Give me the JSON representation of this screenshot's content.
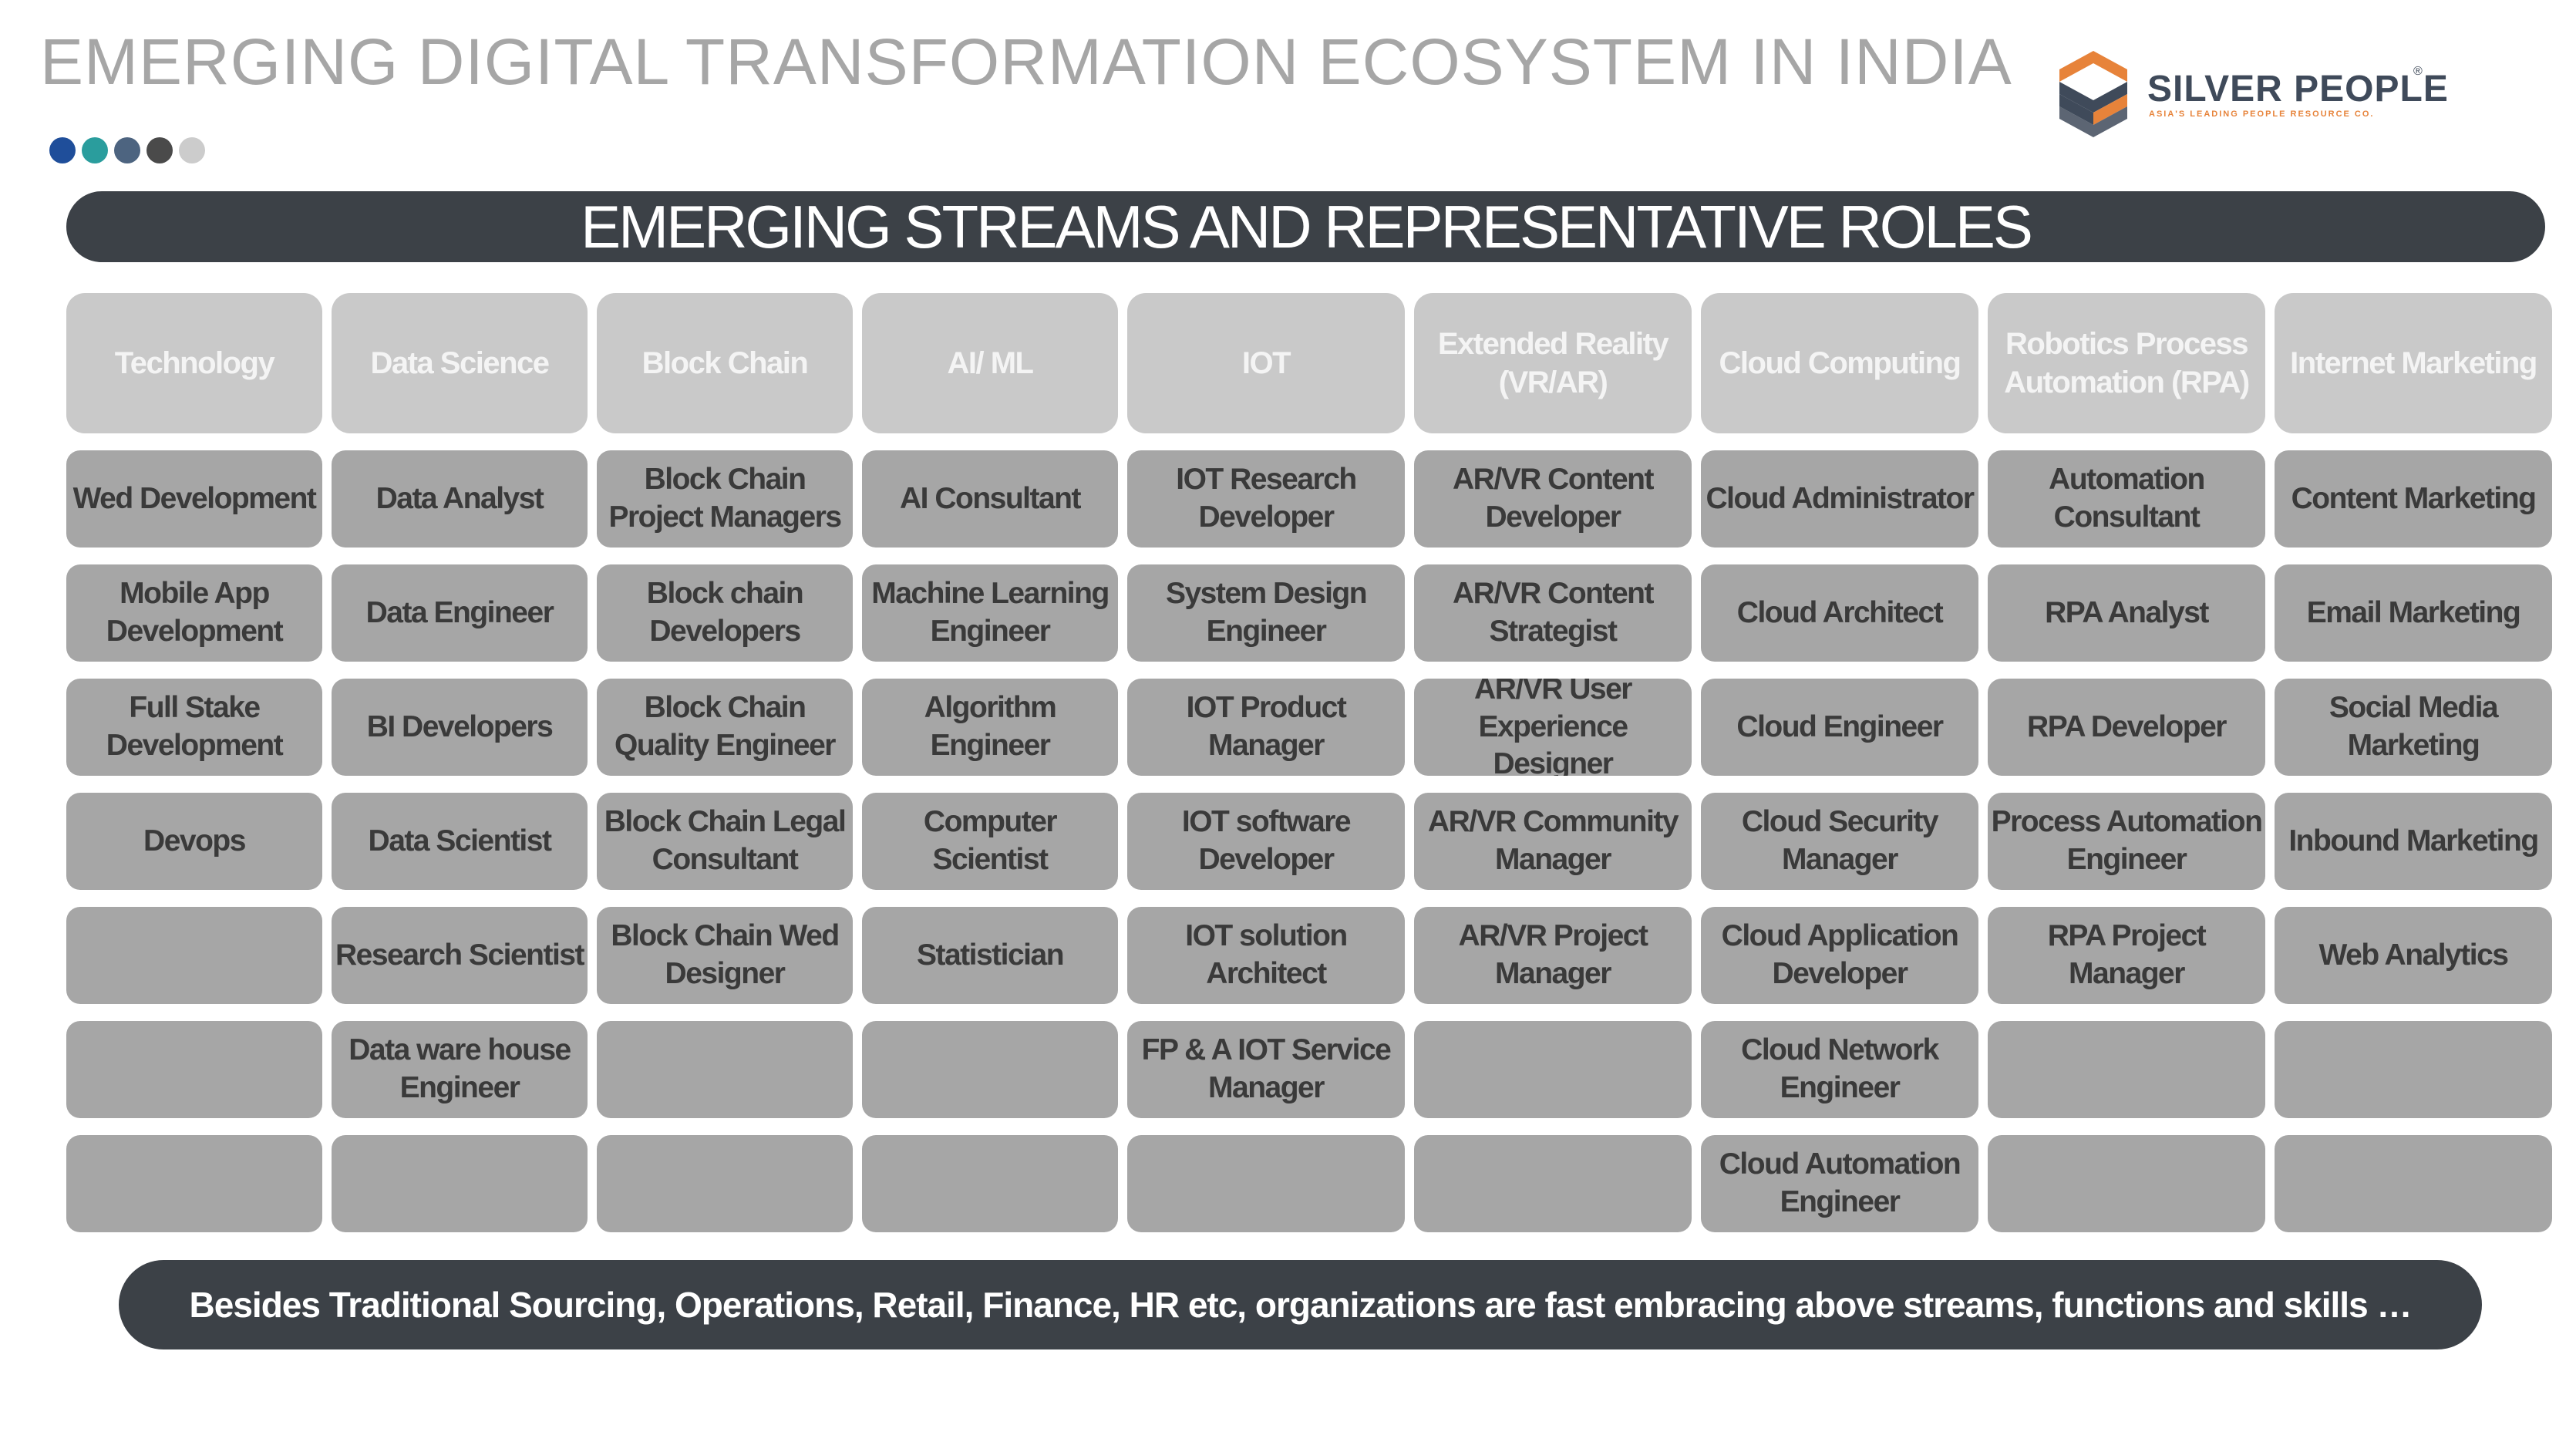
{
  "header": {
    "title": "EMERGING DIGITAL TRANSFORMATION ECOSYSTEM IN INDIA",
    "dot_colors": [
      "#1f4e9a",
      "#2a9d9d",
      "#4d6480",
      "#4a4a4a",
      "#cccccc"
    ]
  },
  "logo": {
    "name": "SILVER PEOPLE",
    "registered_mark": "®",
    "tagline": "ASIA'S LEADING PEOPLE RESOURCE CO.",
    "colors": {
      "orange": "#e7833a",
      "navy": "#3f4a5a"
    }
  },
  "banner": {
    "text": "EMERGING STREAMS AND REPRESENTATIVE ROLES"
  },
  "streams": [
    {
      "name": "Technology",
      "roles": [
        "Wed Development",
        "Mobile App Development",
        "Full Stake Development",
        "Devops",
        "",
        "",
        ""
      ]
    },
    {
      "name": "Data Science",
      "roles": [
        "Data Analyst",
        "Data Engineer",
        "BI Developers",
        "Data Scientist",
        "Research Scientist",
        "Data ware house Engineer",
        ""
      ]
    },
    {
      "name": "Block Chain",
      "roles": [
        "Block Chain Project Managers",
        "Block chain Developers",
        "Block Chain Quality Engineer",
        "Block Chain Legal Consultant",
        "Block Chain Wed Designer",
        "",
        ""
      ]
    },
    {
      "name": "AI/ ML",
      "roles": [
        "AI Consultant",
        "Machine Learning Engineer",
        "Algorithm Engineer",
        "Computer Scientist",
        "Statistician",
        "",
        ""
      ]
    },
    {
      "name": "IOT",
      "roles": [
        "IOT Research Developer",
        "System Design Engineer",
        "IOT Product Manager",
        "IOT software Developer",
        "IOT solution Architect",
        "FP & A IOT Service Manager",
        ""
      ]
    },
    {
      "name": "Extended Reality (VR/AR)",
      "roles": [
        "AR/VR Content Developer",
        "AR/VR Content Strategist",
        "AR/VR User Experience Designer",
        "AR/VR Community Manager",
        "AR/VR Project Manager",
        "",
        ""
      ]
    },
    {
      "name": "Cloud Computing",
      "roles": [
        "Cloud Administrator",
        "Cloud Architect",
        "Cloud Engineer",
        "Cloud Security Manager",
        "Cloud Application Developer",
        "Cloud Network Engineer",
        "Cloud Automation Engineer"
      ]
    },
    {
      "name": "Robotics Process Automation (RPA)",
      "roles": [
        "Automation Consultant",
        "RPA Analyst",
        "RPA Developer",
        "Process Automation Engineer",
        "RPA Project Manager",
        "",
        ""
      ]
    },
    {
      "name": "Internet Marketing",
      "roles": [
        "Content Marketing",
        "Email Marketing",
        "Social Media Marketing",
        "Inbound Marketing",
        "Web Analytics",
        "",
        ""
      ]
    }
  ],
  "colors": {
    "dark_band": "#3c4147",
    "header_cell": "#c9c9c9",
    "role_cell": "#a6a6a6",
    "role_text": "#3a3a3a"
  },
  "footer": {
    "text": "Besides Traditional Sourcing, Operations, Retail, Finance, HR etc, organizations are fast embracing above streams, functions and skills …"
  }
}
